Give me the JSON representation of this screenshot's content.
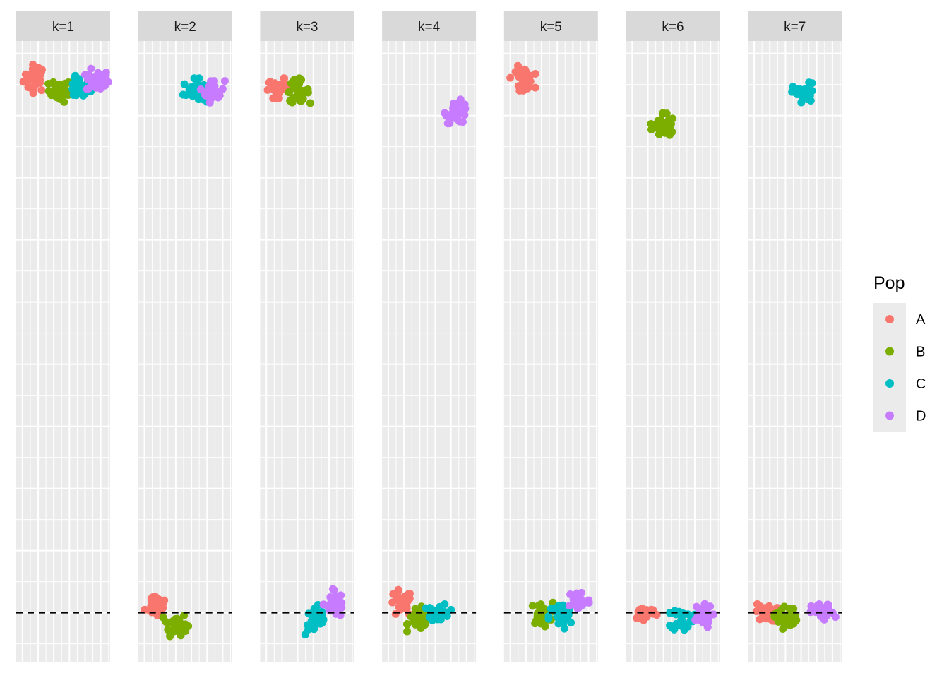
{
  "chart_data": {
    "type": "scatter",
    "facets": [
      "k=1",
      "k=2",
      "k=3",
      "k=4",
      "k=5",
      "k=6",
      "k=7"
    ],
    "x_categories": [
      "A",
      "B",
      "C",
      "D"
    ],
    "ylim": [
      -0.4,
      4.6
    ],
    "reference_line": {
      "y": 0,
      "style": "dashed"
    },
    "grid": true,
    "legend": {
      "title": "Pop",
      "position": "right",
      "entries": [
        {
          "label": "A",
          "color": "#F8766D"
        },
        {
          "label": "B",
          "color": "#7CAE00"
        },
        {
          "label": "C",
          "color": "#00BFC4"
        },
        {
          "label": "D",
          "color": "#C77CFF"
        }
      ]
    },
    "groups": [
      {
        "facet": "k=1",
        "pop": "A",
        "cx": 0.2,
        "cy": 4.3,
        "sx": 0.2,
        "sy": 0.06,
        "n": 32
      },
      {
        "facet": "k=1",
        "pop": "B",
        "cx": 0.6,
        "cy": 4.2,
        "sx": 0.2,
        "sy": 0.05,
        "n": 32
      },
      {
        "facet": "k=1",
        "pop": "C",
        "cx": 0.9,
        "cy": 4.22,
        "sx": 0.2,
        "sy": 0.05,
        "n": 32
      },
      {
        "facet": "k=1",
        "pop": "D",
        "cx": 1.2,
        "cy": 4.28,
        "sx": 0.2,
        "sy": 0.05,
        "n": 32
      },
      {
        "facet": "k=2",
        "pop": "A",
        "cx": 0.2,
        "cy": 0.07,
        "sx": 0.2,
        "sy": 0.06,
        "n": 32
      },
      {
        "facet": "k=2",
        "pop": "B",
        "cx": 0.5,
        "cy": -0.09,
        "sx": 0.2,
        "sy": 0.05,
        "n": 32
      },
      {
        "facet": "k=2",
        "pop": "C",
        "cx": 0.8,
        "cy": 4.2,
        "sx": 0.2,
        "sy": 0.05,
        "n": 32
      },
      {
        "facet": "k=2",
        "pop": "D",
        "cx": 1.1,
        "cy": 4.2,
        "sx": 0.2,
        "sy": 0.05,
        "n": 32
      },
      {
        "facet": "k=3",
        "pop": "A",
        "cx": 0.2,
        "cy": 4.22,
        "sx": 0.2,
        "sy": 0.04,
        "n": 32
      },
      {
        "facet": "k=3",
        "pop": "B",
        "cx": 0.5,
        "cy": 4.2,
        "sx": 0.2,
        "sy": 0.05,
        "n": 32
      },
      {
        "facet": "k=3",
        "pop": "C",
        "cx": 0.8,
        "cy": -0.06,
        "sx": 0.2,
        "sy": 0.07,
        "n": 32
      },
      {
        "facet": "k=3",
        "pop": "D",
        "cx": 1.1,
        "cy": 0.07,
        "sx": 0.2,
        "sy": 0.06,
        "n": 32
      },
      {
        "facet": "k=4",
        "pop": "A",
        "cx": 0.2,
        "cy": 0.07,
        "sx": 0.2,
        "sy": 0.06,
        "n": 32
      },
      {
        "facet": "k=4",
        "pop": "B",
        "cx": 0.5,
        "cy": -0.05,
        "sx": 0.2,
        "sy": 0.05,
        "n": 32
      },
      {
        "facet": "k=4",
        "pop": "C",
        "cx": 0.8,
        "cy": 0.0,
        "sx": 0.2,
        "sy": 0.04,
        "n": 32
      },
      {
        "facet": "k=4",
        "pop": "D",
        "cx": 1.1,
        "cy": 4.03,
        "sx": 0.2,
        "sy": 0.05,
        "n": 32
      },
      {
        "facet": "k=5",
        "pop": "A",
        "cx": 0.2,
        "cy": 4.3,
        "sx": 0.2,
        "sy": 0.05,
        "n": 32
      },
      {
        "facet": "k=5",
        "pop": "B",
        "cx": 0.5,
        "cy": -0.01,
        "sx": 0.2,
        "sy": 0.05,
        "n": 32
      },
      {
        "facet": "k=5",
        "pop": "C",
        "cx": 0.8,
        "cy": -0.03,
        "sx": 0.2,
        "sy": 0.06,
        "n": 32
      },
      {
        "facet": "k=5",
        "pop": "D",
        "cx": 1.1,
        "cy": 0.1,
        "sx": 0.2,
        "sy": 0.05,
        "n": 32
      },
      {
        "facet": "k=6",
        "pop": "A",
        "cx": 0.2,
        "cy": 0.0,
        "sx": 0.2,
        "sy": 0.03,
        "n": 32
      },
      {
        "facet": "k=6",
        "pop": "B",
        "cx": 0.5,
        "cy": 3.92,
        "sx": 0.2,
        "sy": 0.06,
        "n": 32
      },
      {
        "facet": "k=6",
        "pop": "C",
        "cx": 0.8,
        "cy": -0.05,
        "sx": 0.2,
        "sy": 0.05,
        "n": 32
      },
      {
        "facet": "k=6",
        "pop": "D",
        "cx": 1.1,
        "cy": -0.03,
        "sx": 0.2,
        "sy": 0.05,
        "n": 32
      },
      {
        "facet": "k=7",
        "pop": "A",
        "cx": 0.2,
        "cy": 0.0,
        "sx": 0.2,
        "sy": 0.04,
        "n": 32
      },
      {
        "facet": "k=7",
        "pop": "B",
        "cx": 0.5,
        "cy": -0.03,
        "sx": 0.2,
        "sy": 0.05,
        "n": 32
      },
      {
        "facet": "k=7",
        "pop": "C",
        "cx": 0.8,
        "cy": 4.17,
        "sx": 0.2,
        "sy": 0.05,
        "n": 32
      },
      {
        "facet": "k=7",
        "pop": "D",
        "cx": 1.1,
        "cy": 0.0,
        "sx": 0.2,
        "sy": 0.04,
        "n": 32
      }
    ]
  }
}
